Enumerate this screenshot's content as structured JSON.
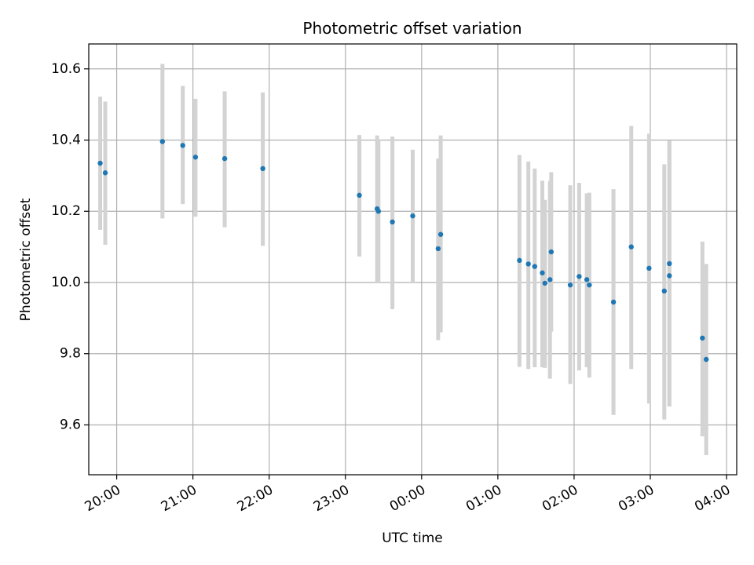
{
  "chart_data": {
    "type": "scatter",
    "title": "Photometric offset variation",
    "xlabel": "UTC time",
    "ylabel": "Photometric offset",
    "xlim": [
      "19:38",
      "04:08"
    ],
    "ylim": [
      9.46,
      10.67
    ],
    "x_ticks": [
      "20:00",
      "21:00",
      "22:00",
      "23:00",
      "00:00",
      "01:00",
      "02:00",
      "03:00",
      "04:00"
    ],
    "y_ticks": [
      9.6,
      9.8,
      10.0,
      10.2,
      10.4,
      10.6
    ],
    "y_tick_labels": [
      "9.6",
      "9.8",
      "10.0",
      "10.2",
      "10.4",
      "10.6"
    ],
    "grid": true,
    "point_color": "#1f77b4",
    "errorbar_color": "#d3d3d3",
    "points": [
      {
        "x": "19:47",
        "y": 10.335,
        "lo": 10.148,
        "hi": 10.522
      },
      {
        "x": "19:51",
        "y": 10.308,
        "lo": 10.106,
        "hi": 10.508
      },
      {
        "x": "20:36",
        "y": 10.396,
        "lo": 10.18,
        "hi": 10.614
      },
      {
        "x": "20:52",
        "y": 10.385,
        "lo": 10.22,
        "hi": 10.552
      },
      {
        "x": "21:02",
        "y": 10.352,
        "lo": 10.185,
        "hi": 10.516
      },
      {
        "x": "21:25",
        "y": 10.348,
        "lo": 10.155,
        "hi": 10.537
      },
      {
        "x": "21:55",
        "y": 10.32,
        "lo": 10.103,
        "hi": 10.534
      },
      {
        "x": "23:11",
        "y": 10.245,
        "lo": 10.073,
        "hi": 10.414
      },
      {
        "x": "23:25",
        "y": 10.207,
        "lo": 10.0,
        "hi": 10.413
      },
      {
        "x": "23:26",
        "y": 10.2,
        "lo": 10.0,
        "hi": 10.4
      },
      {
        "x": "23:37",
        "y": 10.17,
        "lo": 9.925,
        "hi": 10.41
      },
      {
        "x": "23:53",
        "y": 10.187,
        "lo": 10.0,
        "hi": 10.373
      },
      {
        "x": "00:13",
        "y": 10.095,
        "lo": 9.838,
        "hi": 10.348
      },
      {
        "x": "00:15",
        "y": 10.135,
        "lo": 9.86,
        "hi": 10.413
      },
      {
        "x": "01:17",
        "y": 10.062,
        "lo": 9.763,
        "hi": 10.358
      },
      {
        "x": "01:24",
        "y": 10.052,
        "lo": 9.757,
        "hi": 10.34
      },
      {
        "x": "01:29",
        "y": 10.045,
        "lo": 9.762,
        "hi": 10.32
      },
      {
        "x": "01:35",
        "y": 10.027,
        "lo": 9.762,
        "hi": 10.286
      },
      {
        "x": "01:37",
        "y": 9.998,
        "lo": 9.76,
        "hi": 10.232
      },
      {
        "x": "01:41",
        "y": 10.008,
        "lo": 9.73,
        "hi": 10.285
      },
      {
        "x": "01:42",
        "y": 10.086,
        "lo": 9.862,
        "hi": 10.31
      },
      {
        "x": "01:57",
        "y": 9.993,
        "lo": 9.715,
        "hi": 10.273
      },
      {
        "x": "02:04",
        "y": 10.017,
        "lo": 9.753,
        "hi": 10.28
      },
      {
        "x": "02:10",
        "y": 10.008,
        "lo": 9.762,
        "hi": 10.25
      },
      {
        "x": "02:12",
        "y": 9.993,
        "lo": 9.733,
        "hi": 10.252
      },
      {
        "x": "02:31",
        "y": 9.945,
        "lo": 9.628,
        "hi": 10.262
      },
      {
        "x": "02:45",
        "y": 10.1,
        "lo": 9.757,
        "hi": 10.44
      },
      {
        "x": "02:59",
        "y": 10.04,
        "lo": 9.66,
        "hi": 10.418
      },
      {
        "x": "03:11",
        "y": 9.976,
        "lo": 9.615,
        "hi": 10.332
      },
      {
        "x": "03:15",
        "y": 10.019,
        "lo": 9.652,
        "hi": 10.398
      },
      {
        "x": "03:15",
        "y": 10.053,
        "lo": 9.652,
        "hi": 10.398
      },
      {
        "x": "03:41",
        "y": 9.844,
        "lo": 9.568,
        "hi": 10.115
      },
      {
        "x": "03:44",
        "y": 9.784,
        "lo": 9.515,
        "hi": 10.052
      }
    ]
  }
}
